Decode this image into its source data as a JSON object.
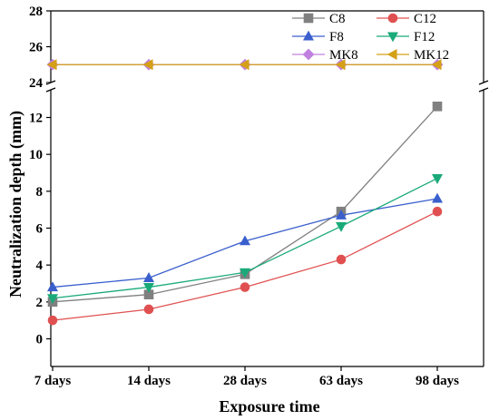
{
  "chart_data": {
    "type": "line",
    "xlabel": "Exposure time",
    "ylabel": "Neutralization depth (mm)",
    "categories": [
      "7 days",
      "14 days",
      "28 days",
      "63 days",
      "98 days"
    ],
    "axis_break": {
      "lower_range": [
        -1.5,
        13.5
      ],
      "upper_range": [
        24,
        28
      ]
    },
    "lower_ticks": [
      0,
      2,
      4,
      6,
      8,
      10,
      12
    ],
    "upper_ticks": [
      24,
      26,
      28
    ],
    "legend_position": "top-right",
    "series": [
      {
        "name": "C8",
        "color": "#808080",
        "marker": "square",
        "values": [
          2.0,
          2.4,
          3.5,
          6.9,
          12.6
        ]
      },
      {
        "name": "C12",
        "color": "#e05050",
        "marker": "circle",
        "values": [
          1.0,
          1.6,
          2.8,
          4.3,
          6.9
        ]
      },
      {
        "name": "F8",
        "color": "#3a5fcd",
        "marker": "triangle-up",
        "values": [
          2.8,
          3.3,
          5.3,
          6.7,
          7.6
        ]
      },
      {
        "name": "F12",
        "color": "#1aaa7a",
        "marker": "triangle-down",
        "values": [
          2.2,
          2.8,
          3.6,
          6.1,
          8.7
        ]
      },
      {
        "name": "MK8",
        "color": "#c080e0",
        "marker": "diamond",
        "values": [
          25,
          25,
          25,
          25,
          25
        ]
      },
      {
        "name": "MK12",
        "color": "#d4a017",
        "marker": "triangle-left",
        "values": [
          25,
          25,
          25,
          25,
          25
        ]
      }
    ]
  }
}
